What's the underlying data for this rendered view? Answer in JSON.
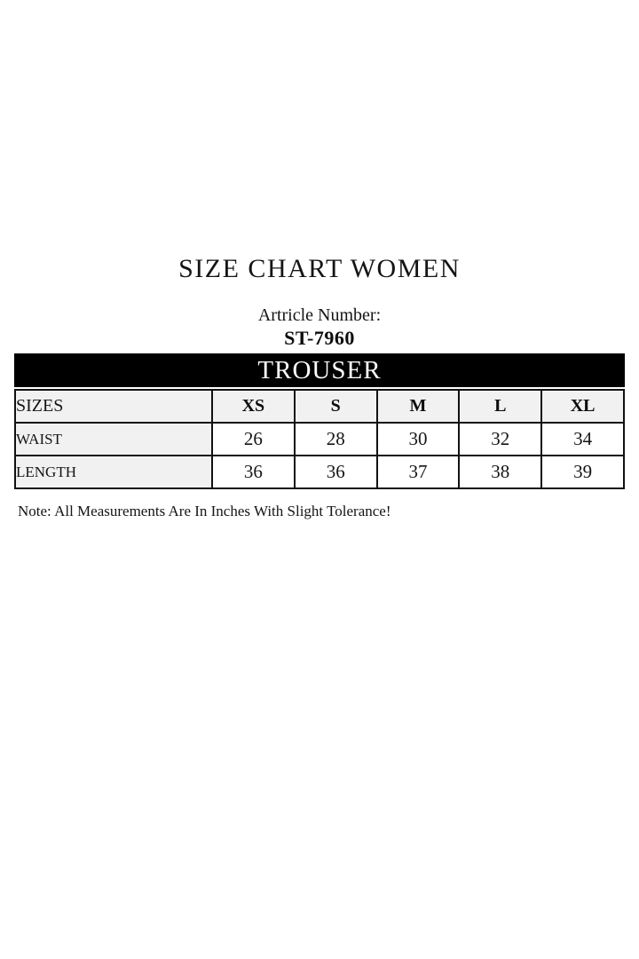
{
  "page": {
    "title": "SIZE CHART WOMEN",
    "article_label": "Artricle Number:",
    "article_number": "ST-7960",
    "note": "Note: All Measurements Are In Inches With Slight Tolerance!"
  },
  "table": {
    "header": "TROUSER",
    "corner_label": "SIZES",
    "sizes": [
      "XS",
      "S",
      "M",
      "L",
      "XL"
    ],
    "rows": [
      {
        "label": "WAIST",
        "values": [
          "26",
          "28",
          "30",
          "32",
          "34"
        ]
      },
      {
        "label": "LENGTH",
        "values": [
          "36",
          "36",
          "37",
          "38",
          "39"
        ]
      }
    ]
  },
  "colors": {
    "bar_background": "#000000",
    "bar_text": "#ffffff",
    "shaded_cell": "#f1f1f1",
    "border": "#111111",
    "page_background": "#ffffff"
  }
}
